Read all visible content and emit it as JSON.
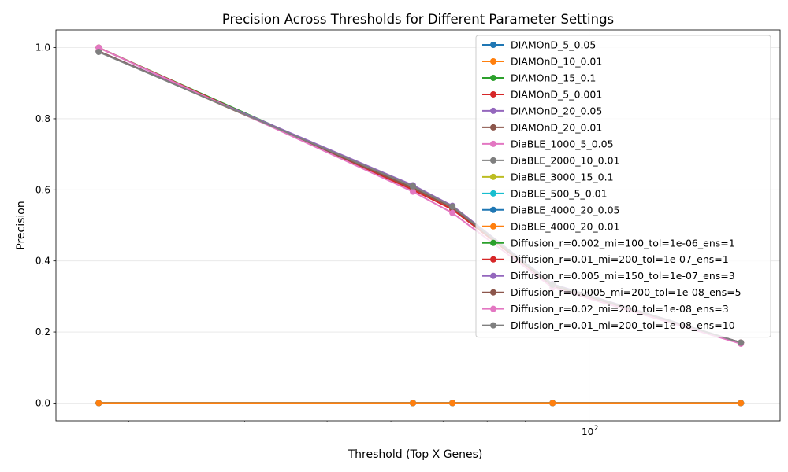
{
  "chart_data": {
    "type": "line",
    "title": "Precision Across Thresholds for Different Parameter Settings",
    "xlabel": "Threshold (Top X Genes)",
    "ylabel": "Precision",
    "xscale": "log",
    "xlim": [
      15.5,
      195
    ],
    "ylim": [
      -0.05,
      1.05
    ],
    "x_tick_labels": [
      {
        "value": 100,
        "base": "10",
        "exp": "2"
      }
    ],
    "yticks": [
      0.0,
      0.2,
      0.4,
      0.6,
      0.8,
      1.0
    ],
    "y_tick_labels": [
      "0.0",
      "0.2",
      "0.4",
      "0.6",
      "0.8",
      "1.0"
    ],
    "grid": true,
    "legend_position": "top-right",
    "x": [
      18,
      54,
      62,
      88,
      170
    ],
    "series": [
      {
        "name": "DIAMOnD_5_0.05",
        "color": "#1f77b4",
        "values": [
          0,
          0,
          0,
          0,
          0
        ]
      },
      {
        "name": "DIAMOnD_10_0.01",
        "color": "#ff7f0e",
        "values": [
          0,
          0,
          0,
          0,
          0
        ]
      },
      {
        "name": "DIAMOnD_15_0.1",
        "color": "#2ca02c",
        "values": [
          0,
          0,
          0,
          0,
          0
        ]
      },
      {
        "name": "DIAMOnD_5_0.001",
        "color": "#d62728",
        "values": [
          0,
          0,
          0,
          0,
          0
        ]
      },
      {
        "name": "DIAMOnD_20_0.05",
        "color": "#9467bd",
        "values": [
          0,
          0,
          0,
          0,
          0
        ]
      },
      {
        "name": "DIAMOnD_20_0.01",
        "color": "#8c564b",
        "values": [
          0,
          0,
          0,
          0,
          0
        ]
      },
      {
        "name": "DiaBLE_1000_5_0.05",
        "color": "#e377c2",
        "values": [
          0,
          0,
          0,
          0,
          0
        ]
      },
      {
        "name": "DiaBLE_2000_10_0.01",
        "color": "#7f7f7f",
        "values": [
          0,
          0,
          0,
          0,
          0
        ]
      },
      {
        "name": "DiaBLE_3000_15_0.1",
        "color": "#bcbd22",
        "values": [
          0,
          0,
          0,
          0,
          0
        ]
      },
      {
        "name": "DiaBLE_500_5_0.01",
        "color": "#17becf",
        "values": [
          0,
          0,
          0,
          0,
          0
        ]
      },
      {
        "name": "DiaBLE_4000_20_0.05",
        "color": "#1f77b4",
        "values": [
          0,
          0,
          0,
          0,
          0
        ]
      },
      {
        "name": "DiaBLE_4000_20_0.01",
        "color": "#ff7f0e",
        "values": [
          0,
          0,
          0,
          0,
          0
        ]
      },
      {
        "name": "Diffusion_r=0.002_mi=100_tol=1e-06_ens=1",
        "color": "#2ca02c",
        "values": [
          1.0,
          0.605,
          0.55,
          0.33,
          0.17
        ]
      },
      {
        "name": "Diffusion_r=0.01_mi=200_tol=1e-07_ens=1",
        "color": "#d62728",
        "values": [
          1.0,
          0.6,
          0.545,
          0.33,
          0.17
        ]
      },
      {
        "name": "Diffusion_r=0.005_mi=150_tol=1e-07_ens=3",
        "color": "#9467bd",
        "values": [
          0.99,
          0.613,
          0.555,
          0.335,
          0.17
        ]
      },
      {
        "name": "Diffusion_r=0.0005_mi=200_tol=1e-08_ens=5",
        "color": "#8c564b",
        "values": [
          0.99,
          0.605,
          0.55,
          0.33,
          0.17
        ]
      },
      {
        "name": "Diffusion_r=0.02_mi=200_tol=1e-08_ens=3",
        "color": "#e377c2",
        "values": [
          1.0,
          0.595,
          0.535,
          0.325,
          0.167
        ]
      },
      {
        "name": "Diffusion_r=0.01_mi=200_tol=1e-08_ens=10",
        "color": "#7f7f7f",
        "values": [
          0.988,
          0.61,
          0.553,
          0.333,
          0.17
        ]
      }
    ]
  }
}
